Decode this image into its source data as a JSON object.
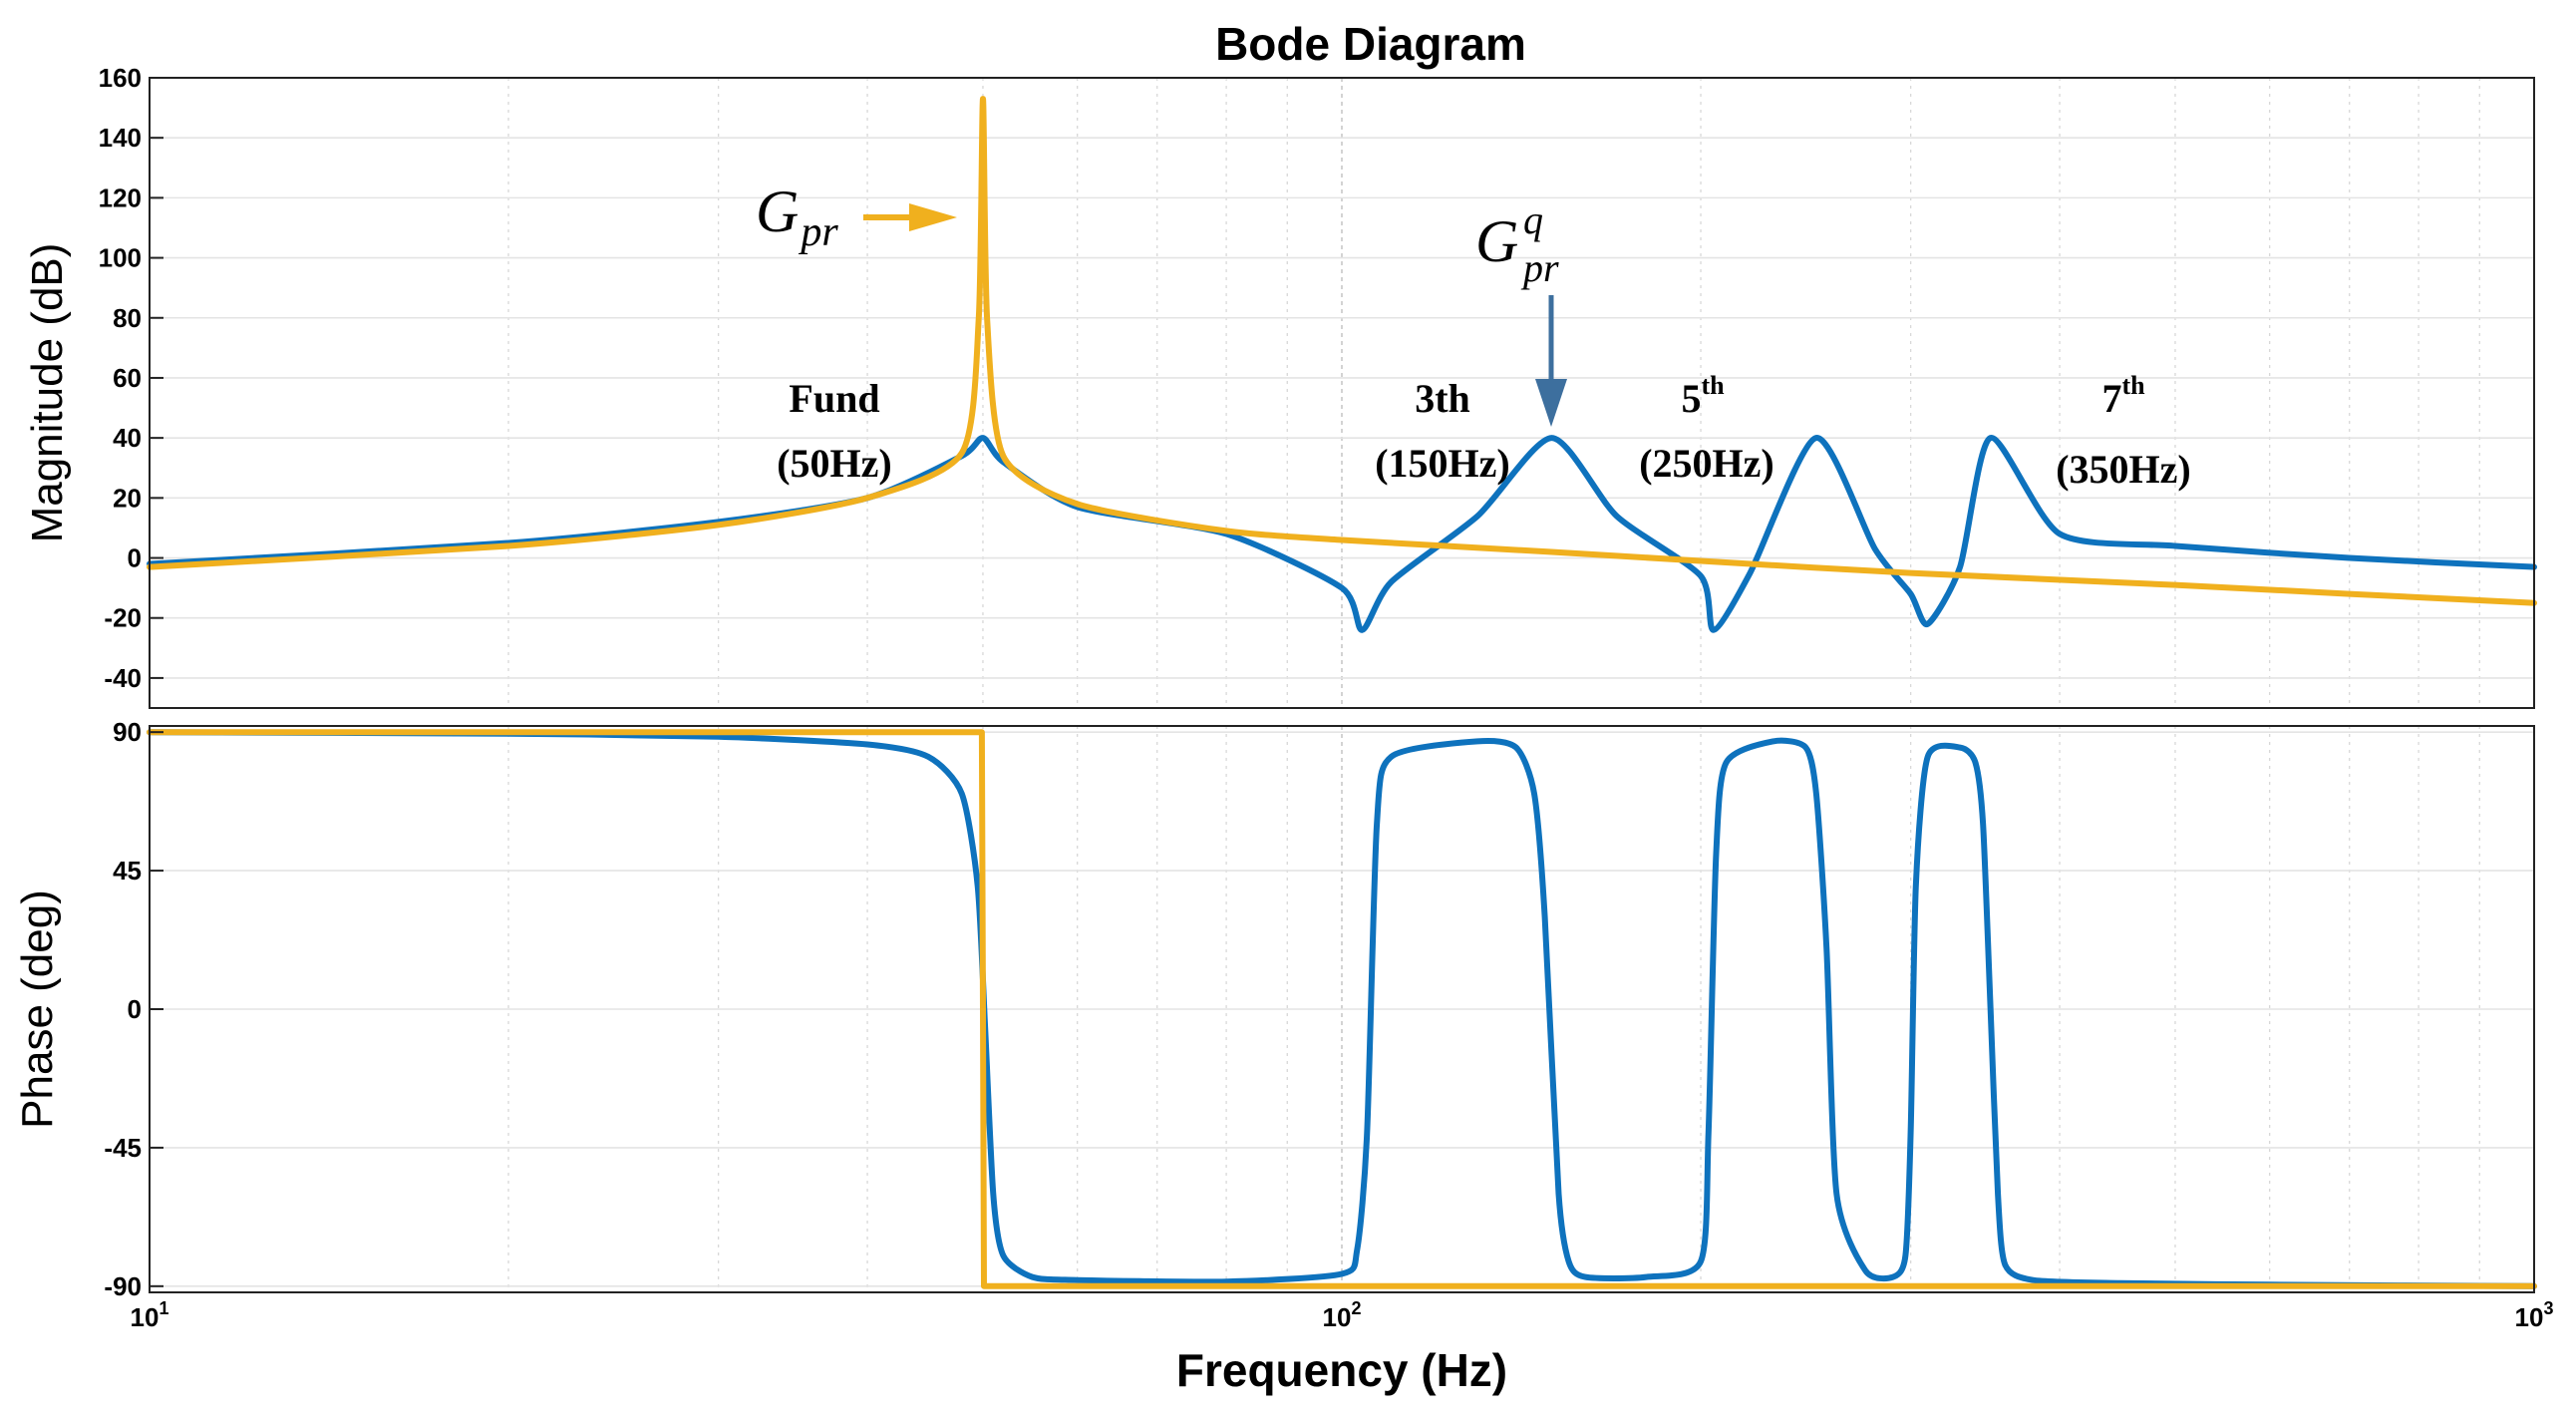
{
  "colors": {
    "blue": "#0E72BD",
    "orange": "#F0B01E",
    "arrow_blue": "#3D6F9E"
  },
  "chart_data": {
    "type": "line",
    "title": "Bode Diagram",
    "xlabel": "Frequency  (Hz)",
    "xscale": "log",
    "xlim": [
      10,
      1000
    ],
    "xticks": [
      10,
      100,
      1000
    ],
    "xtick_labels": [
      {
        "base": "10",
        "exp": "1"
      },
      {
        "base": "10",
        "exp": "2"
      },
      {
        "base": "10",
        "exp": "3"
      }
    ],
    "panels": [
      {
        "name": "magnitude",
        "ylabel": "Magnitude (dB)",
        "ylim": [
          -50,
          160
        ],
        "yticks": [
          -40,
          -20,
          0,
          20,
          40,
          60,
          80,
          100,
          120,
          140,
          160
        ],
        "ytick_labels": [
          "-40",
          "-20",
          "0",
          "20",
          "40",
          "60",
          "80",
          "100",
          "120",
          "140",
          "160"
        ],
        "series": [
          {
            "name": "Gpr^q",
            "color": "#0E72BD",
            "x": [
              10,
              20,
              30,
              40,
              48,
              50,
              52,
              60,
              80,
              100,
              104,
              110,
              130,
              150,
              170,
              200,
              205,
              220,
              250,
              280,
              300,
              310,
              330,
              350,
              400,
              500,
              700,
              1000
            ],
            "y": [
              -2,
              5,
              12,
              20,
              34,
              40,
              32,
              17,
              8,
              -10,
              -24,
              -8,
              14,
              40,
              14,
              -6,
              -24,
              -5,
              40,
              3,
              -12,
              -22,
              -3,
              40,
              8,
              4,
              0,
              -3
            ]
          },
          {
            "name": "Gpr",
            "color": "#F0B01E",
            "x": [
              10,
              20,
              30,
              40,
              48,
              49.6,
              50,
              50.4,
              52,
              60,
              80,
              100,
              150,
              200,
              300,
              500,
              700,
              1000
            ],
            "y": [
              -3,
              4,
              11,
              20,
              35,
              80,
              153,
              80,
              34,
              18,
              9,
              6,
              2,
              -1,
              -5,
              -9,
              -12,
              -15
            ]
          }
        ]
      },
      {
        "name": "phase",
        "ylabel": "Phase (deg)",
        "ylim": [
          -92,
          92
        ],
        "yticks": [
          -90,
          -45,
          0,
          45,
          90
        ],
        "ytick_labels": [
          "-90",
          "-45",
          "0",
          "45",
          "90"
        ],
        "series": [
          {
            "name": "Gpr^q",
            "color": "#0E72BD",
            "x": [
              10,
              20,
              30,
              40,
              45,
              48,
              49.5,
              50.2,
              51,
              52,
              55,
              60,
              80,
              100,
              103,
              105,
              107,
              110,
              130,
              140,
              145,
              148,
              152,
              155,
              160,
              180,
              200,
              203,
              206,
              210,
              230,
              245,
              250,
              255,
              260,
              275,
              290,
              297,
              300,
              303,
              310,
              330,
              340,
              345,
              350,
              355,
              360,
              380,
              450,
              600,
              1000
            ],
            "y": [
              90,
              89.5,
              88.5,
              86,
              82,
              70,
              40,
              -5,
              -60,
              -80,
              -87,
              -88,
              -88.5,
              -86,
              -78,
              -40,
              60,
              82,
              87,
              85,
              70,
              30,
              -60,
              -82,
              -87,
              -87,
              -82,
              -40,
              50,
              80,
              87,
              85,
              70,
              20,
              -60,
              -85,
              -87,
              -80,
              -40,
              40,
              82,
              85,
              80,
              60,
              0,
              -60,
              -83,
              -88,
              -89,
              -89.5,
              -90
            ]
          },
          {
            "name": "Gpr",
            "color": "#F0B01E",
            "x": [
              10,
              49.9,
              50,
              50.1,
              1000
            ],
            "y": [
              90,
              90,
              0,
              -90,
              -90
            ]
          }
        ]
      }
    ],
    "annotations": [
      {
        "id": "fund",
        "line1": "Fund",
        "line2": "(50Hz)"
      },
      {
        "id": "h3",
        "line1": "3th",
        "line2": "(150Hz)"
      },
      {
        "id": "h5",
        "line1_base": "5",
        "line1_sup": "th",
        "line2": "(250Hz)"
      },
      {
        "id": "h7",
        "line1_base": "7",
        "line1_sup": "th",
        "line2": "(350Hz)"
      },
      {
        "id": "gpr",
        "base": "G",
        "sub": "pr"
      },
      {
        "id": "gprq",
        "base": "G",
        "sub": "pr",
        "sup": "q"
      }
    ]
  }
}
